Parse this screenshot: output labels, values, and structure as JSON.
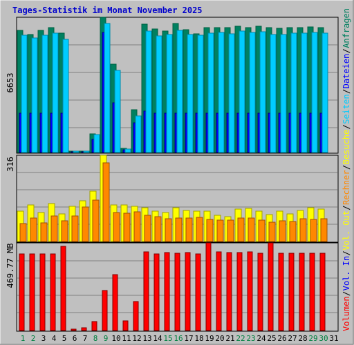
{
  "title": "Tages-Statistik im Monat November 2025",
  "colors": {
    "background": "#c0c0c0",
    "panel_bg": "#c0c0c0",
    "title": "#0000cc",
    "anfragen": "#008060",
    "dateien": "#0000ff",
    "seiten": "#00ccff",
    "besuche": "#ffff00",
    "rechner": "#ff8800",
    "vol_out": "#ffff00",
    "vol_in": "#0000ff",
    "volumen": "#ff0000",
    "weekend_day": "#008040",
    "weekday_day": "#000000",
    "axis": "#000000",
    "grid": "#808080"
  },
  "right_labels": [
    {
      "text": "Anfragen",
      "color": "#008060"
    },
    {
      "text": "/",
      "color": "#000000"
    },
    {
      "text": "Dateien",
      "color": "#0000ff"
    },
    {
      "text": "/",
      "color": "#000000"
    },
    {
      "text": "Seiten",
      "color": "#00ccff"
    },
    {
      "text": "/",
      "color": "#000000"
    },
    {
      "text": "Besuche",
      "color": "#ffff00"
    },
    {
      "text": "/",
      "color": "#000000"
    },
    {
      "text": "Rechner",
      "color": "#ff8800"
    },
    {
      "text": "/",
      "color": "#000000"
    },
    {
      "text": "Vol. Out",
      "color": "#ffff00"
    },
    {
      "text": "/",
      "color": "#000000"
    },
    {
      "text": "Vol. In",
      "color": "#0000ff"
    },
    {
      "text": "/",
      "color": "#000000"
    },
    {
      "text": "Volumen",
      "color": "#ff0000"
    }
  ],
  "chart_data": [
    {
      "type": "bar",
      "panel": "requests",
      "ylabel": "6653",
      "ymax": 6653,
      "x": [
        1,
        2,
        3,
        4,
        5,
        6,
        7,
        8,
        9,
        10,
        11,
        12,
        13,
        14,
        15,
        16,
        17,
        18,
        19,
        20,
        21,
        22,
        23,
        24,
        25,
        26,
        27,
        28,
        29,
        30,
        31
      ],
      "series": [
        {
          "name": "Anfragen",
          "values": [
            6000,
            5820,
            6000,
            6140,
            5880,
            70,
            70,
            930,
            6653,
            4330,
            220,
            2110,
            6300,
            6070,
            5970,
            6360,
            6050,
            5850,
            6130,
            6130,
            6130,
            6210,
            6160,
            6200,
            6160,
            6120,
            6150,
            6160,
            6170,
            6150,
            0
          ]
        },
        {
          "name": "Dateien",
          "values": [
            1950,
            1950,
            1950,
            1950,
            1950,
            50,
            50,
            650,
            5900,
            2450,
            150,
            1450,
            2050,
            1950,
            1950,
            1950,
            1950,
            1950,
            1950,
            1950,
            1950,
            1950,
            1950,
            1950,
            1950,
            1950,
            1950,
            1950,
            1950,
            1950,
            0
          ]
        },
        {
          "name": "Seiten",
          "values": [
            5770,
            5650,
            5770,
            5880,
            5550,
            60,
            60,
            870,
            6340,
            4050,
            180,
            1800,
            5980,
            5750,
            5820,
            6000,
            5810,
            5780,
            5860,
            5920,
            5830,
            5960,
            5890,
            5930,
            5820,
            5790,
            5870,
            5880,
            5890,
            5870,
            0
          ]
        }
      ]
    },
    {
      "type": "bar",
      "panel": "visits",
      "ylabel": "316",
      "ymax": 316,
      "x": [
        1,
        2,
        3,
        4,
        5,
        6,
        7,
        8,
        9,
        10,
        11,
        12,
        13,
        14,
        15,
        16,
        17,
        18,
        19,
        20,
        21,
        22,
        23,
        24,
        25,
        26,
        27,
        28,
        29,
        30,
        31
      ],
      "series": [
        {
          "name": "Besuche",
          "values": [
            110,
            135,
            105,
            138,
            102,
            130,
            150,
            185,
            316,
            135,
            135,
            128,
            125,
            110,
            105,
            125,
            115,
            110,
            112,
            95,
            92,
            118,
            122,
            112,
            98,
            110,
            100,
            115,
            123,
            118,
            0
          ]
        },
        {
          "name": "Rechner",
          "values": [
            66,
            87,
            68,
            94,
            76,
            94,
            127,
            152,
            287,
            106,
            103,
            109,
            95,
            91,
            84,
            86,
            87,
            88,
            82,
            79,
            78,
            87,
            85,
            78,
            72,
            76,
            73,
            84,
            82,
            84,
            0
          ]
        }
      ]
    },
    {
      "type": "bar",
      "panel": "volume",
      "ylabel": "469.77 MB",
      "ymax": 469.77,
      "x": [
        1,
        2,
        3,
        4,
        5,
        6,
        7,
        8,
        9,
        10,
        11,
        12,
        13,
        14,
        15,
        16,
        17,
        18,
        19,
        20,
        21,
        22,
        23,
        24,
        25,
        26,
        27,
        28,
        29,
        30,
        31
      ],
      "series": [
        {
          "name": "Vol. Out",
          "values": [
            0,
            0,
            0,
            0,
            0,
            0,
            0,
            0,
            0,
            0,
            0,
            0,
            0,
            0,
            0,
            0,
            0,
            0,
            0,
            0,
            0,
            0,
            0,
            0,
            0,
            0,
            0,
            0,
            0,
            0,
            0
          ]
        },
        {
          "name": "Vol. In",
          "values": [
            0,
            0,
            0,
            0,
            0,
            0,
            0,
            0,
            0,
            0,
            0,
            0,
            0,
            0,
            0,
            0,
            0,
            0,
            0,
            0,
            0,
            0,
            0,
            0,
            0,
            0,
            0,
            0,
            0,
            0,
            0
          ]
        },
        {
          "name": "Volumen",
          "values": [
            412,
            412,
            412,
            412,
            451,
            6,
            15,
            49,
            216,
            298,
            53,
            157,
            420,
            409,
            418,
            416,
            418,
            412,
            469,
            423,
            417,
            419,
            422,
            414,
            469,
            416,
            414,
            414,
            414,
            414,
            0
          ]
        }
      ]
    }
  ],
  "day_labels": [
    {
      "text": "1",
      "weekend": true
    },
    {
      "text": "2",
      "weekend": true
    },
    {
      "text": "3",
      "weekend": false
    },
    {
      "text": "4",
      "weekend": false
    },
    {
      "text": "5",
      "weekend": false
    },
    {
      "text": "6",
      "weekend": false
    },
    {
      "text": "7",
      "weekend": false
    },
    {
      "text": "8",
      "weekend": true
    },
    {
      "text": "9",
      "weekend": true
    },
    {
      "text": "10",
      "weekend": false
    },
    {
      "text": "11",
      "weekend": false
    },
    {
      "text": "12",
      "weekend": false
    },
    {
      "text": "13",
      "weekend": false
    },
    {
      "text": "14",
      "weekend": false
    },
    {
      "text": "15",
      "weekend": true
    },
    {
      "text": "16",
      "weekend": true
    },
    {
      "text": "17",
      "weekend": false
    },
    {
      "text": "18",
      "weekend": false
    },
    {
      "text": "19",
      "weekend": false
    },
    {
      "text": "20",
      "weekend": false
    },
    {
      "text": "21",
      "weekend": false
    },
    {
      "text": "22",
      "weekend": true
    },
    {
      "text": "23",
      "weekend": true
    },
    {
      "text": "24",
      "weekend": false
    },
    {
      "text": "25",
      "weekend": false
    },
    {
      "text": "26",
      "weekend": false
    },
    {
      "text": "27",
      "weekend": false
    },
    {
      "text": "28",
      "weekend": false
    },
    {
      "text": "29",
      "weekend": true
    },
    {
      "text": "30",
      "weekend": true
    },
    {
      "text": "31",
      "weekend": false
    }
  ]
}
